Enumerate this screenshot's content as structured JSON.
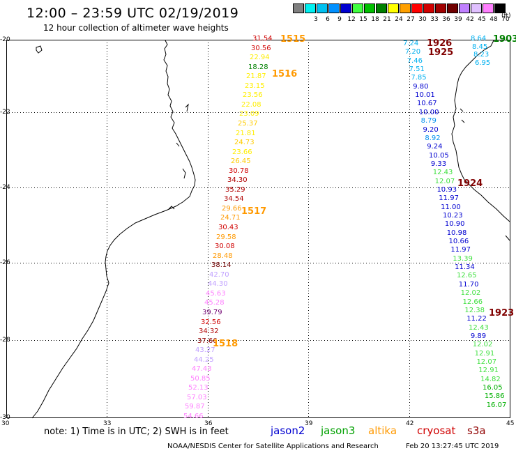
{
  "title": "12:00 – 23:59 UTC 02/19/2019",
  "subtitle": "12 hour collection of altimeter wave heights",
  "scale": {
    "units": "(ft)",
    "bins": [
      {
        "color": "#808080",
        "label": ""
      },
      {
        "color": "#00f0f0",
        "label": "3"
      },
      {
        "color": "#00c0f0",
        "label": "6"
      },
      {
        "color": "#0090ff",
        "label": "9"
      },
      {
        "color": "#0000d0",
        "label": "12"
      },
      {
        "color": "#40ff40",
        "label": "15"
      },
      {
        "color": "#00c000",
        "label": "18"
      },
      {
        "color": "#008000",
        "label": "21"
      },
      {
        "color": "#ffff00",
        "label": "24"
      },
      {
        "color": "#ffa000",
        "label": "27"
      },
      {
        "color": "#ff0000",
        "label": "30"
      },
      {
        "color": "#d00000",
        "label": "33"
      },
      {
        "color": "#a00000",
        "label": "36"
      },
      {
        "color": "#700000",
        "label": "39"
      },
      {
        "color": "#c080ff",
        "label": "42"
      },
      {
        "color": "#e0c0ff",
        "label": "45"
      },
      {
        "color": "#ff80ff",
        "label": "48"
      },
      {
        "color": "#000000",
        "label": "70"
      }
    ]
  },
  "axes": {
    "lon_labels": [
      "30",
      "33",
      "36",
      "39",
      "42",
      "45"
    ],
    "lat_labels": [
      "-20",
      "-22",
      "-24",
      "-26",
      "-28",
      "-30"
    ]
  },
  "passes": [
    {
      "label": "1515",
      "color": "#ff9900"
    },
    {
      "label": "1516",
      "color": "#ff9900"
    },
    {
      "label": "1517",
      "color": "#ff9900"
    },
    {
      "label": "1518",
      "color": "#ff9900"
    },
    {
      "label": "1926",
      "color": "#800000"
    },
    {
      "label": "1925",
      "color": "#800000"
    },
    {
      "label": "1924",
      "color": "#800000"
    },
    {
      "label": "1923",
      "color": "#800000"
    },
    {
      "label": "1903",
      "color": "#008000"
    }
  ],
  "track_1": [
    {
      "v": "31.54",
      "c": "#d00000"
    },
    {
      "v": "30.56",
      "c": "#d00000"
    },
    {
      "v": "22.94",
      "c": "#ffee00"
    },
    {
      "v": "18.28",
      "c": "#008000"
    },
    {
      "v": "21.87",
      "c": "#ffee00"
    },
    {
      "v": "23.15",
      "c": "#ffee00"
    },
    {
      "v": "23.56",
      "c": "#ffee00"
    },
    {
      "v": "22.08",
      "c": "#ffee00"
    },
    {
      "v": "23.09",
      "c": "#ffee00"
    },
    {
      "v": "25.37",
      "c": "#ffcc00"
    },
    {
      "v": "21.81",
      "c": "#ffee00"
    },
    {
      "v": "24.73",
      "c": "#ffcc00"
    },
    {
      "v": "23.66",
      "c": "#ffee00"
    },
    {
      "v": "26.45",
      "c": "#ffcc00"
    },
    {
      "v": "30.78",
      "c": "#d00000"
    },
    {
      "v": "34.30",
      "c": "#b00000"
    },
    {
      "v": "35.29",
      "c": "#b00000"
    },
    {
      "v": "34.54",
      "c": "#b00000"
    },
    {
      "v": "29.66",
      "c": "#ff9900"
    },
    {
      "v": "24.71",
      "c": "#ff9900"
    },
    {
      "v": "30.43",
      "c": "#d00000"
    },
    {
      "v": "29.58",
      "c": "#ff9900"
    },
    {
      "v": "30.08",
      "c": "#d00000"
    },
    {
      "v": "28.48",
      "c": "#ff9900"
    },
    {
      "v": "38.14",
      "c": "#700000"
    },
    {
      "v": "42.70",
      "c": "#c0a0ff"
    },
    {
      "v": "44.30",
      "c": "#c0a0ff"
    },
    {
      "v": "45.63",
      "c": "#ff80ff"
    },
    {
      "v": "45.28",
      "c": "#ff80ff"
    },
    {
      "v": "39.79",
      "c": "#700070"
    },
    {
      "v": "32.56",
      "c": "#d00000"
    },
    {
      "v": "34.32",
      "c": "#b00000"
    },
    {
      "v": "37.66",
      "c": "#900000"
    },
    {
      "v": "43.27",
      "c": "#c0a0ff"
    },
    {
      "v": "44.25",
      "c": "#c0a0ff"
    },
    {
      "v": "47.43",
      "c": "#ff80ff"
    },
    {
      "v": "50.85",
      "c": "#ff80ff"
    },
    {
      "v": "52.13",
      "c": "#ff80ff"
    },
    {
      "v": "57.03",
      "c": "#ff80ff"
    },
    {
      "v": "59.87",
      "c": "#ff80ff"
    },
    {
      "v": "54.66",
      "c": "#ff80ff"
    }
  ],
  "track_2": [
    {
      "v": "7.24",
      "c": "#00b0f0"
    },
    {
      "v": "7.20",
      "c": "#00b0f0"
    },
    {
      "v": "7.46",
      "c": "#00b0f0"
    },
    {
      "v": "7.51",
      "c": "#00b0f0"
    },
    {
      "v": "7.85",
      "c": "#00b0f0"
    },
    {
      "v": "9.80",
      "c": "#0000d0"
    },
    {
      "v": "10.01",
      "c": "#0000d0"
    },
    {
      "v": "10.67",
      "c": "#0000d0"
    },
    {
      "v": "10.00",
      "c": "#0000d0"
    },
    {
      "v": "8.79",
      "c": "#0090f0"
    },
    {
      "v": "9.20",
      "c": "#0000d0"
    },
    {
      "v": "8.92",
      "c": "#0090f0"
    },
    {
      "v": "9.24",
      "c": "#0000d0"
    },
    {
      "v": "10.05",
      "c": "#0000d0"
    },
    {
      "v": "9.33",
      "c": "#0000d0"
    },
    {
      "v": "12.43",
      "c": "#40e040"
    },
    {
      "v": "12.07",
      "c": "#40e040"
    },
    {
      "v": "10.93",
      "c": "#0000d0"
    },
    {
      "v": "11.97",
      "c": "#0000d0"
    },
    {
      "v": "11.00",
      "c": "#0000d0"
    },
    {
      "v": "10.23",
      "c": "#0000d0"
    },
    {
      "v": "10.90",
      "c": "#0000d0"
    },
    {
      "v": "10.98",
      "c": "#0000d0"
    },
    {
      "v": "10.66",
      "c": "#0000d0"
    },
    {
      "v": "11.97",
      "c": "#0000d0"
    },
    {
      "v": "13.39",
      "c": "#40e040"
    },
    {
      "v": "11.34",
      "c": "#0000d0"
    },
    {
      "v": "12.65",
      "c": "#40e040"
    },
    {
      "v": "11.70",
      "c": "#0000d0"
    },
    {
      "v": "12.02",
      "c": "#40e040"
    },
    {
      "v": "12.66",
      "c": "#40e040"
    },
    {
      "v": "12.38",
      "c": "#40e040"
    },
    {
      "v": "11.22",
      "c": "#0000d0"
    },
    {
      "v": "12.43",
      "c": "#40e040"
    },
    {
      "v": "9.89",
      "c": "#0000d0"
    },
    {
      "v": "12.02",
      "c": "#40e040"
    },
    {
      "v": "12.91",
      "c": "#40e040"
    },
    {
      "v": "12.07",
      "c": "#40e040"
    },
    {
      "v": "12.91",
      "c": "#40e040"
    },
    {
      "v": "14.82",
      "c": "#40e040"
    },
    {
      "v": "16.05",
      "c": "#00b000"
    },
    {
      "v": "15.86",
      "c": "#00b000"
    },
    {
      "v": "16.07",
      "c": "#00b000"
    }
  ],
  "track_3": [
    {
      "v": "8.64",
      "c": "#00b0f0"
    },
    {
      "v": "8.45",
      "c": "#00b0f0"
    },
    {
      "v": "8.23",
      "c": "#00b0f0"
    },
    {
      "v": "6.95",
      "c": "#00b0f0"
    }
  ],
  "note": "note: 1) Time is in UTC; 2) SWH is in feet",
  "satellites": [
    {
      "name": "jason2",
      "color": "#0000d0"
    },
    {
      "name": "jason3",
      "color": "#00a000"
    },
    {
      "name": "altika",
      "color": "#ff9900"
    },
    {
      "name": "cryosat",
      "color": "#d00000"
    },
    {
      "name": "s3a",
      "color": "#900000"
    }
  ],
  "footer_left": "NOAA/NESDIS Center for Satellite Applications and Research",
  "footer_right": "Feb 20 13:27:45 UTC 2019"
}
